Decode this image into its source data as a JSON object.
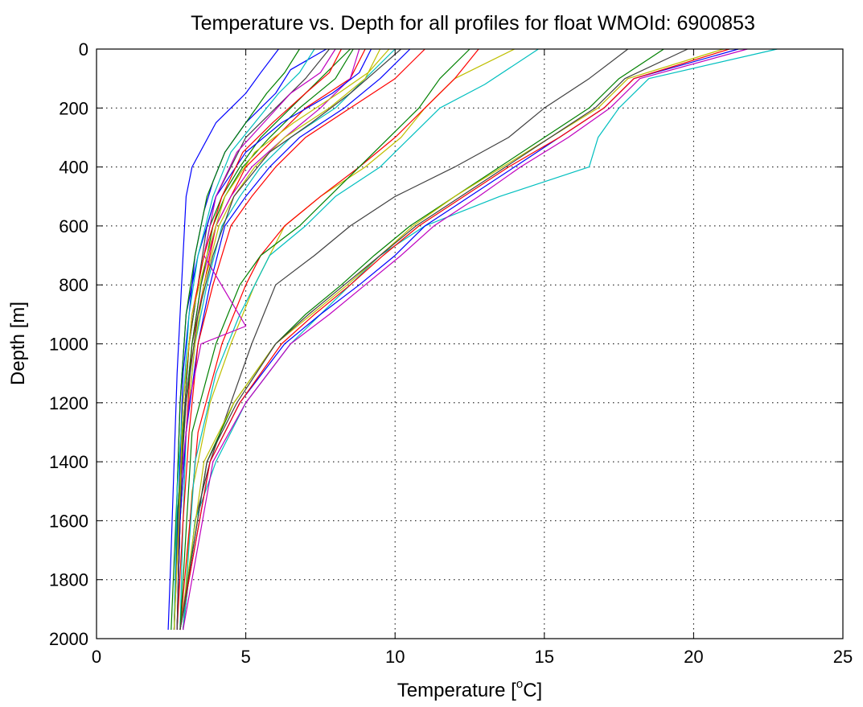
{
  "chart_data": {
    "type": "line",
    "title": "Temperature vs. Depth for all profiles for float WMOId: 6900853",
    "xlabel_prefix": "Temperature [",
    "xlabel_sup": "o",
    "xlabel_suffix": "C]",
    "ylabel": "Depth [m]",
    "xlim": [
      0,
      25
    ],
    "ylim": [
      2000,
      0
    ],
    "y_reversed": true,
    "xticks": [
      0,
      5,
      10,
      15,
      20,
      25
    ],
    "yticks": [
      0,
      200,
      400,
      600,
      800,
      1000,
      1200,
      1400,
      1600,
      1800,
      2000
    ],
    "grid": "dotted",
    "legend": "none",
    "colors": {
      "blue": "#0000ff",
      "green": "#008000",
      "red": "#ff0000",
      "cyan": "#00bfbf",
      "magenta": "#bf00bf",
      "yellow": "#bfbf00",
      "gray": "#404040"
    },
    "series": [
      {
        "color": "blue",
        "depth": [
          0,
          80,
          150,
          250,
          400,
          500,
          700,
          900,
          1100,
          1400,
          1700,
          1970
        ],
        "temp": [
          6.1,
          5.5,
          5.0,
          4.0,
          3.2,
          3.0,
          2.9,
          2.8,
          2.7,
          2.6,
          2.5,
          2.4
        ]
      },
      {
        "color": "blue",
        "depth": [
          0,
          70,
          150,
          250,
          350,
          450,
          550,
          700,
          900,
          1100,
          1400,
          1970
        ],
        "temp": [
          7.7,
          6.5,
          6.0,
          5.0,
          4.3,
          3.9,
          3.6,
          3.3,
          3.1,
          2.9,
          2.8,
          2.6
        ]
      },
      {
        "color": "green",
        "depth": [
          0,
          100,
          200,
          300,
          400,
          500,
          600,
          800,
          1000,
          1300,
          1600,
          1970
        ],
        "temp": [
          8.5,
          7.5,
          6.5,
          5.5,
          4.8,
          4.2,
          3.8,
          3.4,
          3.1,
          2.9,
          2.8,
          2.7
        ]
      },
      {
        "color": "red",
        "depth": [
          0,
          100,
          200,
          300,
          400,
          500,
          600,
          800,
          1000,
          1300,
          1600,
          1970
        ],
        "temp": [
          9.0,
          8.5,
          7.0,
          6.0,
          5.0,
          4.5,
          4.0,
          3.6,
          3.2,
          3.0,
          2.8,
          2.7
        ]
      },
      {
        "color": "cyan",
        "depth": [
          0,
          100,
          200,
          300,
          400,
          500,
          600,
          800,
          1000,
          1300,
          1600,
          1970
        ],
        "temp": [
          10.0,
          9.0,
          8.0,
          6.5,
          5.5,
          4.8,
          4.2,
          3.7,
          3.3,
          3.0,
          2.9,
          2.8
        ]
      },
      {
        "color": "magenta",
        "depth": [
          0,
          100,
          200,
          300,
          400,
          500,
          600,
          800,
          1000,
          1300,
          1600,
          1970
        ],
        "temp": [
          8.8,
          8.5,
          7.5,
          6.3,
          5.2,
          4.5,
          4.0,
          3.5,
          3.2,
          2.9,
          2.7,
          2.6
        ]
      },
      {
        "color": "gray",
        "depth": [
          0,
          100,
          200,
          300,
          400,
          500,
          600,
          800,
          1000,
          1300,
          1600,
          1970
        ],
        "temp": [
          7.8,
          7.0,
          6.0,
          5.0,
          4.5,
          4.0,
          3.7,
          3.4,
          3.1,
          2.9,
          2.8,
          2.7
        ]
      },
      {
        "color": "yellow",
        "depth": [
          0,
          100,
          200,
          300,
          400,
          500,
          600,
          800,
          1000,
          1300,
          1600,
          1970
        ],
        "temp": [
          9.5,
          9.0,
          7.8,
          6.3,
          5.3,
          4.6,
          4.1,
          3.6,
          3.3,
          3.0,
          2.8,
          2.7
        ]
      },
      {
        "color": "blue",
        "depth": [
          0,
          100,
          200,
          300,
          400,
          500,
          600,
          800,
          1000,
          1300,
          1600,
          1970
        ],
        "temp": [
          10.5,
          9.5,
          8.3,
          6.8,
          5.8,
          5.0,
          4.3,
          3.8,
          3.4,
          3.0,
          2.8,
          2.7
        ]
      },
      {
        "color": "green",
        "depth": [
          0,
          100,
          200,
          300,
          400,
          500,
          600,
          800,
          1000,
          1300,
          1600,
          1970
        ],
        "temp": [
          8.6,
          8.0,
          6.8,
          5.8,
          4.9,
          4.3,
          3.9,
          3.5,
          3.2,
          2.9,
          2.7,
          2.6
        ]
      },
      {
        "color": "red",
        "depth": [
          0,
          100,
          200,
          300,
          400,
          500,
          600,
          800,
          1000,
          1300,
          1600,
          1970
        ],
        "temp": [
          11.0,
          10.0,
          8.5,
          7.0,
          6.0,
          5.2,
          4.5,
          3.9,
          3.4,
          3.1,
          2.9,
          2.7
        ]
      },
      {
        "color": "yellow",
        "depth": [
          0,
          100,
          200,
          300,
          400,
          500,
          600,
          800,
          1000,
          1200,
          1500,
          1970
        ],
        "temp": [
          14.0,
          12.0,
          11.0,
          10.2,
          9.0,
          7.5,
          6.3,
          5.3,
          4.5,
          3.8,
          3.2,
          2.9
        ]
      },
      {
        "color": "red",
        "depth": [
          0,
          100,
          200,
          300,
          400,
          500,
          600,
          700,
          800,
          1000,
          1300,
          1970
        ],
        "temp": [
          12.8,
          12.0,
          11.0,
          10.0,
          8.8,
          7.5,
          6.3,
          5.5,
          5.0,
          4.2,
          3.4,
          2.8
        ]
      },
      {
        "color": "cyan",
        "depth": [
          0,
          120,
          200,
          300,
          400,
          500,
          600,
          700,
          900,
          1100,
          1400,
          1970
        ],
        "temp": [
          14.8,
          13.0,
          11.5,
          10.5,
          9.5,
          8.0,
          7.0,
          5.8,
          4.8,
          4.0,
          3.3,
          2.9
        ]
      },
      {
        "color": "green",
        "depth": [
          0,
          100,
          200,
          300,
          400,
          500,
          600,
          700,
          800,
          1000,
          1300,
          1970
        ],
        "temp": [
          12.5,
          11.5,
          10.8,
          9.8,
          8.8,
          7.8,
          6.8,
          5.5,
          4.8,
          4.0,
          3.2,
          2.8
        ]
      },
      {
        "color": "gray",
        "depth": [
          0,
          100,
          200,
          300,
          400,
          500,
          600,
          700,
          800,
          1000,
          1200,
          1400,
          1600,
          1970
        ],
        "temp": [
          17.8,
          16.5,
          15.0,
          13.8,
          12.0,
          10.0,
          8.5,
          7.3,
          6.0,
          5.2,
          4.5,
          3.8,
          3.3,
          2.9
        ]
      },
      {
        "color": "cyan",
        "depth": [
          0,
          100,
          200,
          300,
          400,
          500,
          600,
          700,
          800,
          1000,
          1200,
          1400,
          1600,
          1970
        ],
        "temp": [
          22.8,
          18.5,
          17.5,
          16.8,
          16.5,
          13.5,
          11.0,
          9.5,
          8.5,
          6.5,
          5.0,
          4.0,
          3.3,
          2.9
        ]
      },
      {
        "color": "blue",
        "depth": [
          0,
          100,
          200,
          300,
          400,
          500,
          600,
          700,
          800,
          900,
          1000,
          1200,
          1400,
          1970
        ],
        "temp": [
          21.5,
          18.0,
          17.0,
          15.5,
          14.0,
          12.5,
          11.0,
          10.0,
          8.8,
          7.5,
          6.3,
          4.8,
          3.8,
          2.8
        ]
      },
      {
        "color": "green",
        "depth": [
          0,
          100,
          200,
          300,
          400,
          500,
          600,
          700,
          800,
          900,
          1000,
          1200,
          1400,
          1970
        ],
        "temp": [
          19.0,
          17.5,
          16.5,
          15.0,
          13.5,
          12.0,
          10.5,
          9.3,
          8.2,
          7.0,
          6.0,
          4.6,
          3.7,
          2.8
        ]
      },
      {
        "color": "magenta",
        "depth": [
          0,
          100,
          200,
          300,
          400,
          500,
          600,
          700,
          800,
          900,
          1000,
          1200,
          1400,
          1970
        ],
        "temp": [
          21.8,
          18.2,
          17.2,
          15.8,
          14.2,
          12.8,
          11.3,
          10.2,
          9.0,
          7.8,
          6.5,
          5.0,
          3.9,
          2.9
        ]
      },
      {
        "color": "red",
        "depth": [
          0,
          100,
          200,
          300,
          400,
          500,
          600,
          700,
          800,
          900,
          1000,
          1200,
          1400,
          1970
        ],
        "temp": [
          21.2,
          18.0,
          17.0,
          15.5,
          13.8,
          12.3,
          10.8,
          9.6,
          8.5,
          7.3,
          6.2,
          4.8,
          3.8,
          2.8
        ]
      },
      {
        "color": "yellow",
        "depth": [
          0,
          100,
          200,
          300,
          400,
          500,
          600,
          700,
          800,
          900,
          1000,
          1200,
          1400,
          1970
        ],
        "temp": [
          21.0,
          17.8,
          16.8,
          15.2,
          13.6,
          12.0,
          10.6,
          9.5,
          8.4,
          7.2,
          6.0,
          4.6,
          3.6,
          2.8
        ]
      },
      {
        "color": "gray",
        "depth": [
          0,
          100,
          200,
          300,
          400,
          500,
          600,
          700,
          800,
          900,
          1000,
          1200,
          1400,
          1970
        ],
        "temp": [
          19.8,
          17.7,
          16.7,
          15.2,
          13.7,
          12.2,
          10.7,
          9.5,
          8.3,
          7.1,
          6.0,
          4.7,
          3.7,
          2.8
        ]
      },
      {
        "color": "blue",
        "depth": [
          0,
          80,
          150,
          250,
          350,
          500,
          700,
          900,
          1200,
          1500,
          1970
        ],
        "temp": [
          9.2,
          8.8,
          7.9,
          6.2,
          5.0,
          4.0,
          3.4,
          3.0,
          2.8,
          2.7,
          2.6
        ]
      },
      {
        "color": "magenta",
        "depth": [
          0,
          80,
          150,
          250,
          350,
          500,
          700,
          940,
          1000,
          1200,
          1500,
          1970
        ],
        "temp": [
          8.0,
          7.5,
          6.5,
          5.6,
          4.7,
          4.0,
          3.6,
          5.0,
          3.5,
          3.1,
          2.8,
          2.7
        ]
      },
      {
        "color": "red",
        "depth": [
          0,
          80,
          150,
          250,
          350,
          500,
          700,
          900,
          1200,
          1500,
          1970
        ],
        "temp": [
          8.2,
          7.8,
          7.0,
          5.9,
          4.9,
          4.2,
          3.6,
          3.2,
          2.9,
          2.8,
          2.6
        ]
      },
      {
        "color": "green",
        "depth": [
          0,
          80,
          150,
          250,
          350,
          500,
          700,
          900,
          1200,
          1500,
          1970
        ],
        "temp": [
          6.8,
          6.3,
          5.7,
          5.0,
          4.3,
          3.7,
          3.3,
          3.0,
          2.8,
          2.7,
          2.5
        ]
      },
      {
        "color": "cyan",
        "depth": [
          0,
          80,
          150,
          250,
          350,
          500,
          700,
          900,
          1200,
          1500,
          1970
        ],
        "temp": [
          7.3,
          6.8,
          6.1,
          5.3,
          4.5,
          3.9,
          3.4,
          3.1,
          2.9,
          2.7,
          2.6
        ]
      },
      {
        "color": "gray",
        "depth": [
          0,
          80,
          150,
          250,
          350,
          500,
          700,
          900,
          1200,
          1500,
          1970
        ],
        "temp": [
          10.2,
          9.3,
          8.5,
          7.2,
          5.8,
          4.6,
          3.9,
          3.4,
          3.0,
          2.8,
          2.7
        ]
      },
      {
        "color": "yellow",
        "depth": [
          0,
          80,
          150,
          250,
          350,
          500,
          700,
          900,
          1200,
          1500,
          1970
        ],
        "temp": [
          9.8,
          9.1,
          8.1,
          6.6,
          5.3,
          4.3,
          3.7,
          3.2,
          2.9,
          2.8,
          2.6
        ]
      }
    ]
  }
}
